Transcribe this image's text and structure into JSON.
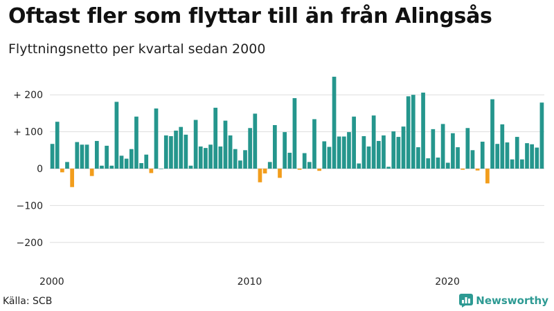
{
  "header": {
    "title": "Oftast fler som flyttar till än från Alingsås",
    "subtitle": "Flyttningsnetto per kvartal sedan 2000"
  },
  "footer": {
    "source": "Källa: SCB",
    "brand": "Newsworthy",
    "brand_icon": "bar-chart-logo-icon"
  },
  "colors": {
    "positive": "#25968d",
    "negative": "#f29d1c",
    "grid": "#dddddd",
    "brand": "#2d9a93"
  },
  "chart_data": {
    "type": "bar",
    "start_year": 2000,
    "frequency": "quarterly",
    "ylim": [
      -250,
      260
    ],
    "yticks": [
      {
        "value": 200,
        "label": "+ 200"
      },
      {
        "value": 100,
        "label": "+ 100"
      },
      {
        "value": 0,
        "label": "0"
      },
      {
        "value": -100,
        "label": "−100"
      },
      {
        "value": -200,
        "label": "−200"
      }
    ],
    "xticks": [
      {
        "year": 2000,
        "label": "2000"
      },
      {
        "year": 2010,
        "label": "2010"
      },
      {
        "year": 2020,
        "label": "2020"
      }
    ],
    "grid": true,
    "values": [
      67,
      127,
      -10,
      18,
      -50,
      72,
      65,
      65,
      -20,
      75,
      8,
      62,
      8,
      181,
      35,
      27,
      53,
      141,
      15,
      38,
      -12,
      163,
      0,
      90,
      88,
      103,
      113,
      92,
      8,
      132,
      60,
      56,
      65,
      165,
      60,
      130,
      90,
      53,
      22,
      50,
      110,
      149,
      -37,
      -13,
      18,
      118,
      -25,
      99,
      43,
      191,
      -3,
      42,
      18,
      134,
      -6,
      74,
      59,
      249,
      87,
      87,
      99,
      141,
      14,
      88,
      60,
      144,
      75,
      90,
      5,
      101,
      86,
      114,
      196,
      200,
      58,
      206,
      28,
      107,
      30,
      121,
      16,
      96,
      58,
      -3,
      110,
      50,
      -5,
      73,
      -40,
      188,
      67,
      120,
      71,
      25,
      86,
      25,
      69,
      66,
      57,
      179
    ]
  }
}
